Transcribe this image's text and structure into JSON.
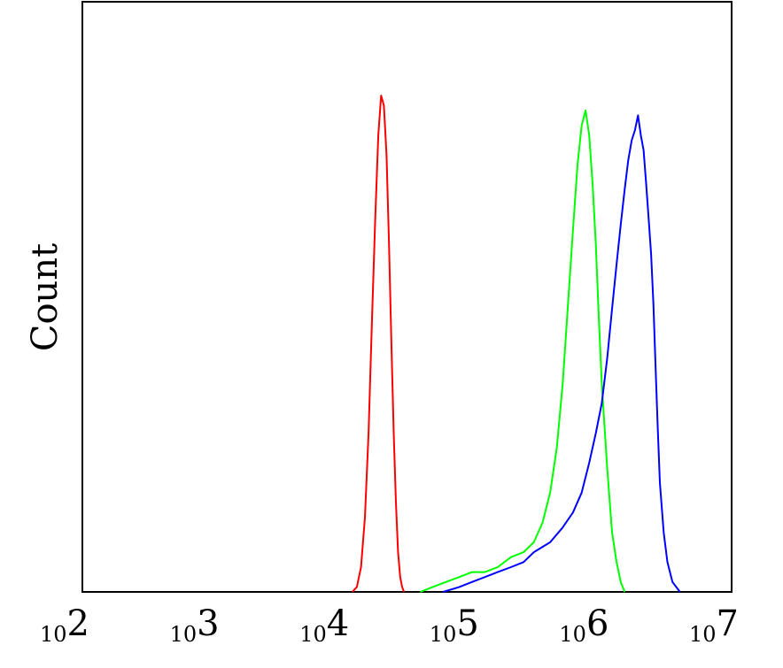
{
  "chart_data": {
    "type": "line",
    "title": "",
    "xlabel": "",
    "ylabel": "Count",
    "x_scale": "log",
    "xlim": [
      100,
      10000000
    ],
    "ylim": [
      0,
      100
    ],
    "grid": false,
    "x_ticks": [
      {
        "value": 100,
        "base": "10",
        "exp": "2"
      },
      {
        "value": 1000,
        "base": "10",
        "exp": "3"
      },
      {
        "value": 10000,
        "base": "10",
        "exp": "4"
      },
      {
        "value": 100000,
        "base": "10",
        "exp": "5"
      },
      {
        "value": 1000000,
        "base": "10",
        "exp": "6"
      },
      {
        "value": 10000000,
        "base": "10",
        "exp": "7"
      }
    ],
    "series": [
      {
        "color": "#ff0000",
        "points": [
          [
            12000,
            0
          ],
          [
            13000,
            1
          ],
          [
            14000,
            5
          ],
          [
            15000,
            15
          ],
          [
            16000,
            32
          ],
          [
            17000,
            55
          ],
          [
            18000,
            75
          ],
          [
            19000,
            92
          ],
          [
            20000,
            100
          ],
          [
            21000,
            98
          ],
          [
            22000,
            88
          ],
          [
            23000,
            70
          ],
          [
            24000,
            50
          ],
          [
            25000,
            32
          ],
          [
            26000,
            18
          ],
          [
            27000,
            8
          ],
          [
            28000,
            3
          ],
          [
            29000,
            1
          ],
          [
            30000,
            0
          ]
        ]
      },
      {
        "color": "#00ff00",
        "points": [
          [
            40000,
            0
          ],
          [
            50000,
            1
          ],
          [
            63000,
            2
          ],
          [
            80000,
            3
          ],
          [
            100000,
            4
          ],
          [
            126000,
            4
          ],
          [
            158000,
            5
          ],
          [
            200000,
            7
          ],
          [
            250000,
            8
          ],
          [
            300000,
            10
          ],
          [
            350000,
            14
          ],
          [
            400000,
            20
          ],
          [
            450000,
            29
          ],
          [
            500000,
            42
          ],
          [
            550000,
            58
          ],
          [
            600000,
            73
          ],
          [
            650000,
            86
          ],
          [
            700000,
            94
          ],
          [
            750000,
            97
          ],
          [
            800000,
            92
          ],
          [
            850000,
            82
          ],
          [
            900000,
            70
          ],
          [
            950000,
            55
          ],
          [
            1000000,
            42
          ],
          [
            1100000,
            25
          ],
          [
            1200000,
            12
          ],
          [
            1300000,
            6
          ],
          [
            1400000,
            2
          ],
          [
            1500000,
            0
          ]
        ]
      },
      {
        "color": "#0000ff",
        "points": [
          [
            60000,
            0
          ],
          [
            80000,
            1
          ],
          [
            100000,
            2
          ],
          [
            126000,
            3
          ],
          [
            158000,
            4
          ],
          [
            200000,
            5
          ],
          [
            250000,
            6
          ],
          [
            300000,
            8
          ],
          [
            400000,
            10
          ],
          [
            500000,
            13
          ],
          [
            600000,
            16
          ],
          [
            700000,
            20
          ],
          [
            800000,
            26
          ],
          [
            900000,
            32
          ],
          [
            1000000,
            38
          ],
          [
            1100000,
            47
          ],
          [
            1200000,
            57
          ],
          [
            1300000,
            66
          ],
          [
            1400000,
            74
          ],
          [
            1500000,
            81
          ],
          [
            1600000,
            87
          ],
          [
            1700000,
            91
          ],
          [
            1800000,
            93
          ],
          [
            1900000,
            96
          ],
          [
            2000000,
            92
          ],
          [
            2100000,
            89
          ],
          [
            2200000,
            82
          ],
          [
            2300000,
            75
          ],
          [
            2400000,
            68
          ],
          [
            2500000,
            58
          ],
          [
            2600000,
            45
          ],
          [
            2700000,
            33
          ],
          [
            2800000,
            22
          ],
          [
            3000000,
            12
          ],
          [
            3200000,
            6
          ],
          [
            3500000,
            2
          ],
          [
            4000000,
            0
          ]
        ]
      }
    ]
  }
}
